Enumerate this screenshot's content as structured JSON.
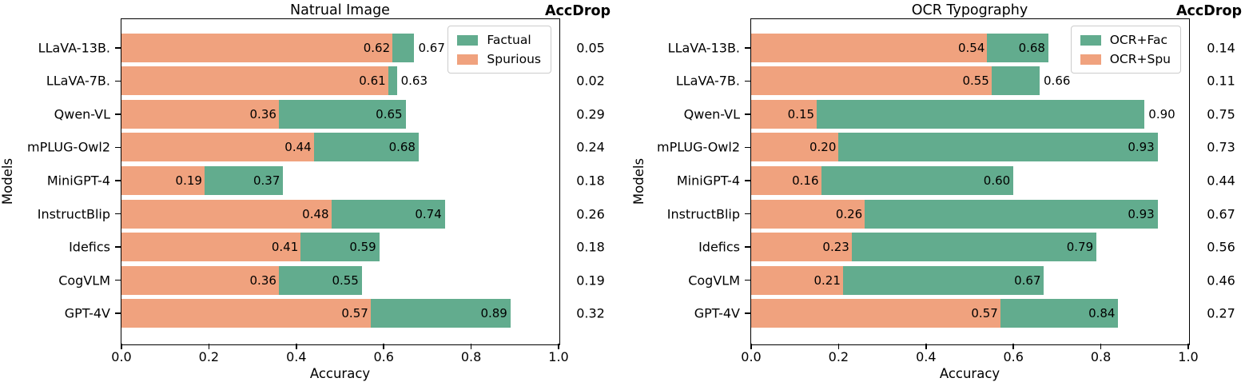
{
  "colors": {
    "factual_green": "#62ac8e",
    "spurious_orange": "#f0a27e",
    "axis_black": "#000000",
    "legend_border": "#cccccc"
  },
  "chart_data": [
    {
      "type": "bar",
      "orientation": "horizontal",
      "title": "Natrual Image",
      "accdrop_header": "AccDrop",
      "xlabel": "Accuracy",
      "ylabel": "Models",
      "xlim": [
        0.0,
        1.0
      ],
      "xticks": [
        "0.0",
        "0.2",
        "0.4",
        "0.6",
        "0.8",
        "1.0"
      ],
      "legend_position": "upper right",
      "models": [
        "LLaVA-13B.",
        "LLaVA-7B.",
        "Qwen-VL",
        "mPLUG-Owl2",
        "MiniGPT-4",
        "InstructBlip",
        "Idefics",
        "CogVLM",
        "GPT-4V"
      ],
      "series": [
        {
          "name": "Factual",
          "color_key": "factual_green",
          "values": [
            0.67,
            0.63,
            0.65,
            0.68,
            0.37,
            0.74,
            0.59,
            0.55,
            0.89
          ]
        },
        {
          "name": "Spurious",
          "color_key": "spurious_orange",
          "values": [
            0.62,
            0.61,
            0.36,
            0.44,
            0.19,
            0.48,
            0.41,
            0.36,
            0.57
          ]
        }
      ],
      "accdrop": [
        0.05,
        0.02,
        0.29,
        0.24,
        0.18,
        0.26,
        0.18,
        0.19,
        0.32
      ],
      "fac_label_outside": [
        true,
        true,
        false,
        false,
        false,
        false,
        false,
        false,
        false
      ]
    },
    {
      "type": "bar",
      "orientation": "horizontal",
      "title": "OCR Typography",
      "accdrop_header": "AccDrop",
      "xlabel": "Accuracy",
      "ylabel": "Models",
      "xlim": [
        0.0,
        1.0
      ],
      "xticks": [
        "0.0",
        "0.2",
        "0.4",
        "0.6",
        "0.8",
        "1.0"
      ],
      "legend_position": "upper right",
      "models": [
        "LLaVA-13B.",
        "LLaVA-7B.",
        "Qwen-VL",
        "mPLUG-Owl2",
        "MiniGPT-4",
        "InstructBlip",
        "Idefics",
        "CogVLM",
        "GPT-4V"
      ],
      "series": [
        {
          "name": "OCR+Fac",
          "color_key": "factual_green",
          "values": [
            0.68,
            0.66,
            0.9,
            0.93,
            0.6,
            0.93,
            0.79,
            0.67,
            0.84
          ]
        },
        {
          "name": "OCR+Spu",
          "color_key": "spurious_orange",
          "values": [
            0.54,
            0.55,
            0.15,
            0.2,
            0.16,
            0.26,
            0.23,
            0.21,
            0.57
          ]
        }
      ],
      "accdrop": [
        0.14,
        0.11,
        0.75,
        0.73,
        0.44,
        0.67,
        0.56,
        0.46,
        0.27
      ],
      "fac_label_outside": [
        false,
        true,
        true,
        false,
        false,
        false,
        false,
        false,
        false
      ]
    }
  ]
}
